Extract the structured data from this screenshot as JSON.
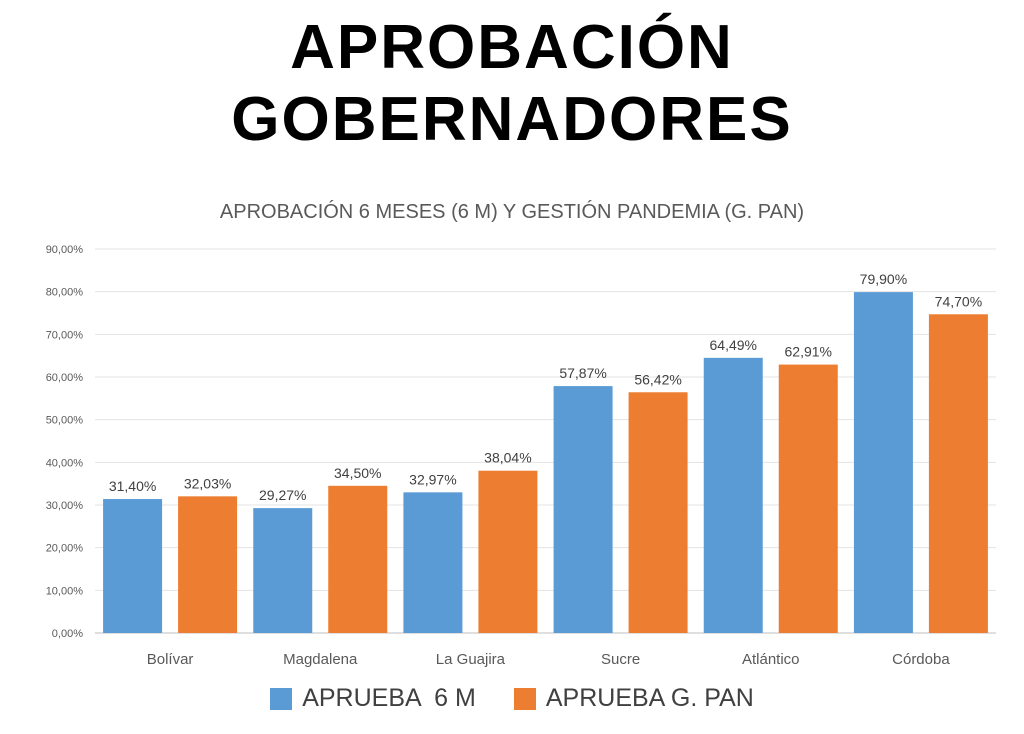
{
  "headline": {
    "line1": "APROBACIÓN",
    "line2": "GOBERNADORES"
  },
  "chart_data": {
    "type": "bar",
    "title": "APROBACIÓN 6 MESES (6 M) Y GESTIÓN PANDEMIA (G. PAN)",
    "categories": [
      "Bolívar",
      "Magdalena",
      "La Guajira",
      "Sucre",
      "Atlántico",
      "Córdoba"
    ],
    "series": [
      {
        "name": "APRUEBA  6 M",
        "color": "#5B9BD5",
        "values": [
          31.4,
          29.27,
          32.97,
          57.87,
          64.49,
          79.9
        ],
        "labels": [
          "31,40%",
          "29,27%",
          "32,97%",
          "57,87%",
          "64,49%",
          "79,90%"
        ]
      },
      {
        "name": "APRUEBA G. PAN",
        "color": "#ED7D31",
        "values": [
          32.03,
          34.5,
          38.04,
          56.42,
          62.91,
          74.7
        ],
        "labels": [
          "32,03%",
          "34,50%",
          "38,04%",
          "56,42%",
          "62,91%",
          "74,70%"
        ]
      }
    ],
    "ylim": [
      0,
      90
    ],
    "yticks": [
      0,
      10,
      20,
      30,
      40,
      50,
      60,
      70,
      80,
      90
    ],
    "ytick_labels": [
      "0,00%",
      "10,00%",
      "20,00%",
      "30,00%",
      "40,00%",
      "50,00%",
      "60,00%",
      "70,00%",
      "80,00%",
      "90,00%"
    ],
    "grid": true,
    "legend_position": "bottom"
  }
}
